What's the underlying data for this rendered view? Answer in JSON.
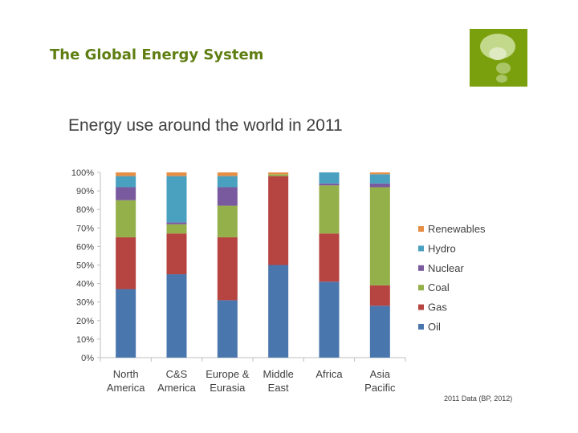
{
  "slide": {
    "title": "The Global Energy System"
  },
  "logo": {
    "icon": "speech-bubbles-icon",
    "color": "#7aa00e"
  },
  "source_note": "2011 Data (BP, 2012)",
  "colors": {
    "Oil": "#4a76ae",
    "Gas": "#b64441",
    "Coal": "#94b04a",
    "Nuclear": "#7a5a9e",
    "Hydro": "#4aa0bf",
    "Renewables": "#e58f46"
  },
  "chart_data": {
    "type": "bar",
    "stacked": true,
    "title": "Energy use around the world in 2011",
    "xlabel": "",
    "ylabel": "",
    "ylim": [
      0,
      100
    ],
    "yticks": [
      "0%",
      "10%",
      "20%",
      "30%",
      "40%",
      "50%",
      "60%",
      "70%",
      "80%",
      "90%",
      "100%"
    ],
    "categories": [
      [
        "North",
        "America"
      ],
      [
        "C&S",
        "America"
      ],
      [
        "Europe &",
        "Eurasia"
      ],
      [
        "Middle",
        "East"
      ],
      [
        "Africa"
      ],
      [
        "Asia",
        "Pacific"
      ]
    ],
    "series": [
      {
        "name": "Oil",
        "values": [
          37,
          45,
          31,
          50,
          41,
          28
        ]
      },
      {
        "name": "Gas",
        "values": [
          28,
          22,
          34,
          48,
          26,
          11
        ]
      },
      {
        "name": "Coal",
        "values": [
          20,
          5,
          17,
          1,
          26,
          53
        ]
      },
      {
        "name": "Nuclear",
        "values": [
          7,
          1,
          10,
          0,
          1,
          2
        ]
      },
      {
        "name": "Hydro",
        "values": [
          6,
          25,
          6,
          0,
          6,
          5
        ]
      },
      {
        "name": "Renewables",
        "values": [
          2,
          2,
          2,
          1,
          0,
          1
        ]
      }
    ],
    "legend_order": [
      "Renewables",
      "Hydro",
      "Nuclear",
      "Coal",
      "Gas",
      "Oil"
    ],
    "legend_position": "right",
    "grid": false
  }
}
